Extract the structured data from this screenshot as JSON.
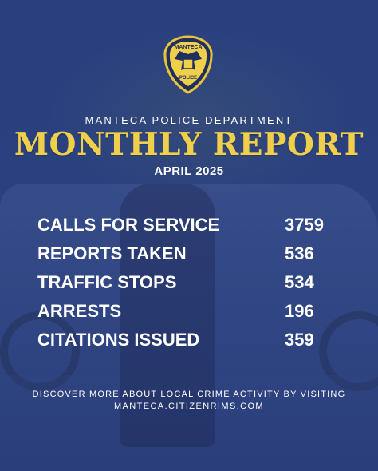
{
  "badge": {
    "top_text": "MANTECA",
    "bottom_text": "POLICE"
  },
  "header": {
    "department": "MANTECA POLICE DEPARTMENT",
    "title": "MONTHLY REPORT",
    "month": "APRIL 2025"
  },
  "stats": [
    {
      "label": "CALLS FOR SERVICE",
      "value": "3759"
    },
    {
      "label": "REPORTS TAKEN",
      "value": "536"
    },
    {
      "label": "TRAFFIC STOPS",
      "value": "534"
    },
    {
      "label": "ARRESTS",
      "value": "196"
    },
    {
      "label": "CITATIONS ISSUED",
      "value": "359"
    }
  ],
  "footer": {
    "text": "DISCOVER MORE ABOUT LOCAL CRIME ACTIVITY BY VISITING",
    "link": "MANTECA.CITIZENRIMS.COM"
  },
  "colors": {
    "background": "#2b417f",
    "gold": "#f0cf4a",
    "text": "#ffffff"
  }
}
